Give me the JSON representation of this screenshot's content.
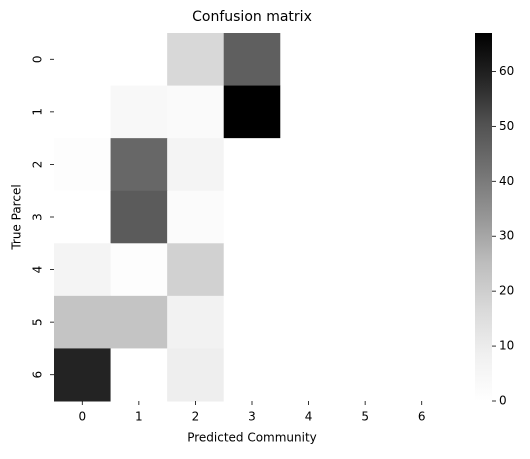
{
  "chart_data": {
    "type": "heatmap",
    "title": "Confusion matrix",
    "xlabel": "Predicted Community",
    "ylabel": "True Parcel",
    "x_categories": [
      "0",
      "1",
      "2",
      "3",
      "4",
      "5",
      "6"
    ],
    "y_categories": [
      "0",
      "1",
      "2",
      "3",
      "4",
      "5",
      "6"
    ],
    "values": [
      [
        0,
        0,
        17,
        47,
        0,
        0,
        0
      ],
      [
        0,
        4,
        3,
        67,
        0,
        0,
        0
      ],
      [
        1,
        45,
        6,
        0,
        0,
        0,
        0
      ],
      [
        0,
        48,
        2,
        0,
        0,
        0,
        0
      ],
      [
        6,
        1,
        19,
        0,
        0,
        0,
        0
      ],
      [
        23,
        23,
        7,
        0,
        0,
        0,
        0
      ],
      [
        59,
        0,
        9,
        0,
        0,
        0,
        0
      ]
    ],
    "colormap": "Greys",
    "zlim": [
      0,
      67
    ],
    "zticks": [
      0,
      10,
      20,
      30,
      40,
      50,
      60
    ]
  }
}
